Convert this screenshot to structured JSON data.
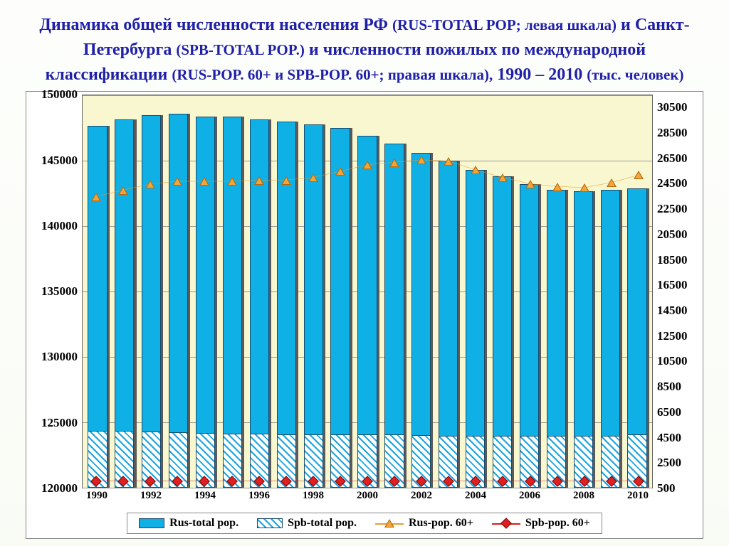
{
  "title": {
    "line": "Динамика общей численности населения РФ <span class='small'>(RUS-TOTAL POP; левая шкала)</span> и Санкт-Петербурга <span class='small'>(SPB-TOTAL POP.)</span> и численности пожилых по международной классификации <span class='small'>(RUS-POP. 60+ и SPB-POP. 60+; правая шкала),</span> 1990 – 2010 <span class='small'>(тыс. человек)</span>",
    "color": "#1f1fa8",
    "fontsize_main": 24,
    "fontsize_small": 21
  },
  "chart": {
    "type": "bar+line-dual-axis",
    "years": [
      1990,
      1991,
      1992,
      1993,
      1994,
      1995,
      1996,
      1997,
      1998,
      1999,
      2000,
      2001,
      2002,
      2003,
      2004,
      2005,
      2006,
      2007,
      2008,
      2009,
      2010
    ],
    "x_tick_labels": [
      "1990",
      "",
      "1992",
      "",
      "1994",
      "",
      "1996",
      "",
      "1998",
      "",
      "2000",
      "",
      "2002",
      "",
      "2004",
      "",
      "2006",
      "",
      "2008",
      "",
      "2010"
    ],
    "left_axis": {
      "min": 120000,
      "max": 150000,
      "ticks": [
        120000,
        125000,
        130000,
        135000,
        140000,
        145000,
        150000
      ],
      "fontsize": 17
    },
    "right_axis": {
      "min": 500,
      "max": 31500,
      "ticks": [
        500,
        2500,
        4500,
        6500,
        8500,
        10500,
        12500,
        14500,
        16500,
        18500,
        20500,
        22500,
        24500,
        26500,
        28500,
        30500
      ],
      "fontsize": 17
    },
    "rus_total": [
      147700,
      148200,
      148500,
      148600,
      148400,
      148400,
      148200,
      148000,
      147800,
      147500,
      146900,
      146300,
      145600,
      145000,
      144300,
      143800,
      143200,
      142800,
      142700,
      142800,
      142900
    ],
    "spb_total": [
      5000,
      5000,
      4950,
      4900,
      4850,
      4800,
      4750,
      4700,
      4700,
      4700,
      4700,
      4700,
      4650,
      4600,
      4600,
      4600,
      4600,
      4600,
      4600,
      4600,
      4700
    ],
    "rus_60": [
      23500,
      24000,
      24500,
      24700,
      24700,
      24700,
      24800,
      24800,
      25000,
      25500,
      26000,
      26200,
      26400,
      26300,
      25600,
      25000,
      24500,
      24300,
      24200,
      24600,
      25200
    ],
    "spb_60": [
      1000,
      1000,
      1000,
      1000,
      1000,
      1000,
      1000,
      1000,
      1000,
      1000,
      1000,
      1000,
      1000,
      1000,
      1000,
      1000,
      1000,
      1000,
      1000,
      1000,
      1000
    ],
    "colors": {
      "background_plot": "#f9f7cf",
      "grid": "#999999",
      "rus_total_fill": "#0fb0e6",
      "rus_total_border": "#1b4a6a",
      "spb_total_fill": "hatch-blue-white",
      "shadow": "#5a5a5a",
      "line_rus60": "#e89b2e",
      "marker_rus60_fill": "#f2a53a",
      "marker_rus60_border": "#b56a0e",
      "line_spb60": "#d91c1c",
      "marker_spb60_fill": "#e02020"
    },
    "legend": {
      "items": [
        "Rus-total pop.",
        "Spb-total pop.",
        "Rus-pop. 60+",
        "Spb-pop. 60+"
      ],
      "fontsize": 16
    }
  }
}
